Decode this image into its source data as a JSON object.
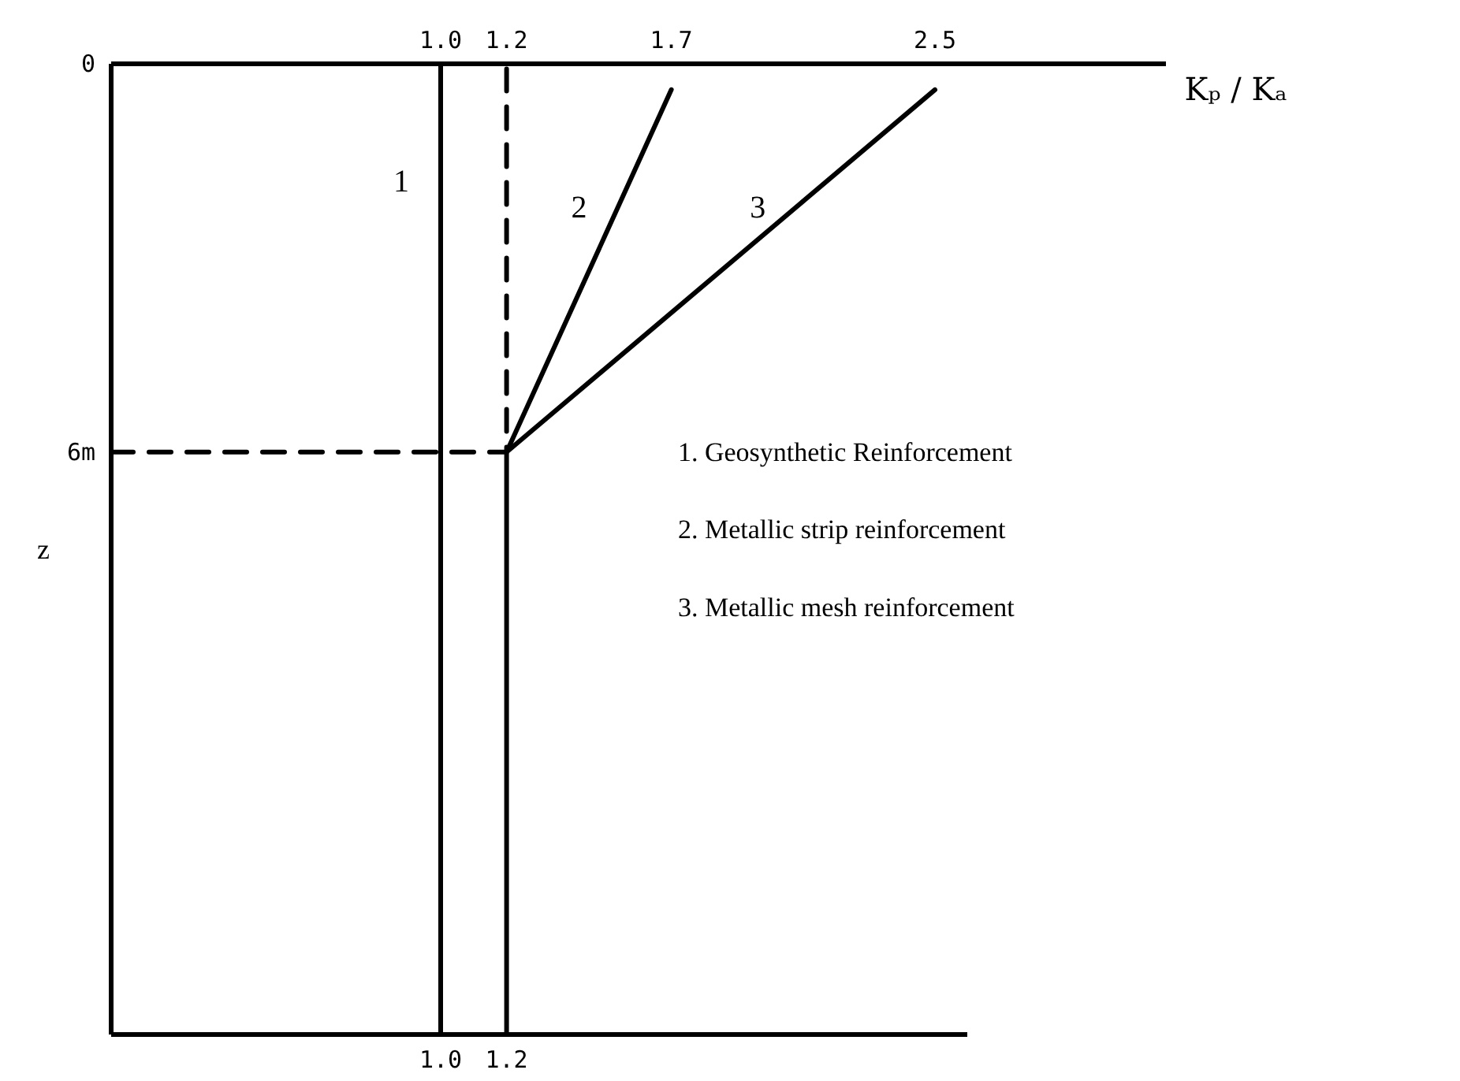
{
  "chart_data": {
    "type": "line",
    "x2label": "Kₚ / Kₐ",
    "ylabel": "z",
    "xlim": [
      0,
      2.6
    ],
    "xticks": [
      {
        "value": 1.0,
        "label": "1.0"
      },
      1.2
    ],
    "x2lim": [
      0,
      3.2
    ],
    "x2ticks": [
      {
        "value": 1.0,
        "label": "1.0"
      },
      1.2,
      1.7,
      2.5
    ],
    "ylim": [
      15,
      0
    ],
    "yticks": [
      0,
      {
        "value": 6,
        "label": "6m"
      }
    ],
    "grid": false,
    "ref_lines": [
      {
        "axis": "x",
        "value": 1.0,
        "label": "1",
        "color": "#000000"
      }
    ],
    "series": [
      {
        "name": "2",
        "color": "#000000",
        "x": [
          1.7,
          1.2,
          1.2
        ],
        "values": [
          0.4,
          6,
          15
        ]
      },
      {
        "name": "3",
        "color": "#000000",
        "x": [
          2.5,
          1.2
        ],
        "values": [
          0.4,
          6
        ]
      },
      {
        "color": "#000000",
        "line_style": "dashed",
        "x": [
          0,
          1.2,
          1.2
        ],
        "values": [
          6,
          6,
          0
        ]
      }
    ],
    "annotations": [
      "1. Geosynthetic Reinforcement",
      "2. Metallic strip reinforcement",
      "3. Metallic mesh reinforcement"
    ]
  }
}
